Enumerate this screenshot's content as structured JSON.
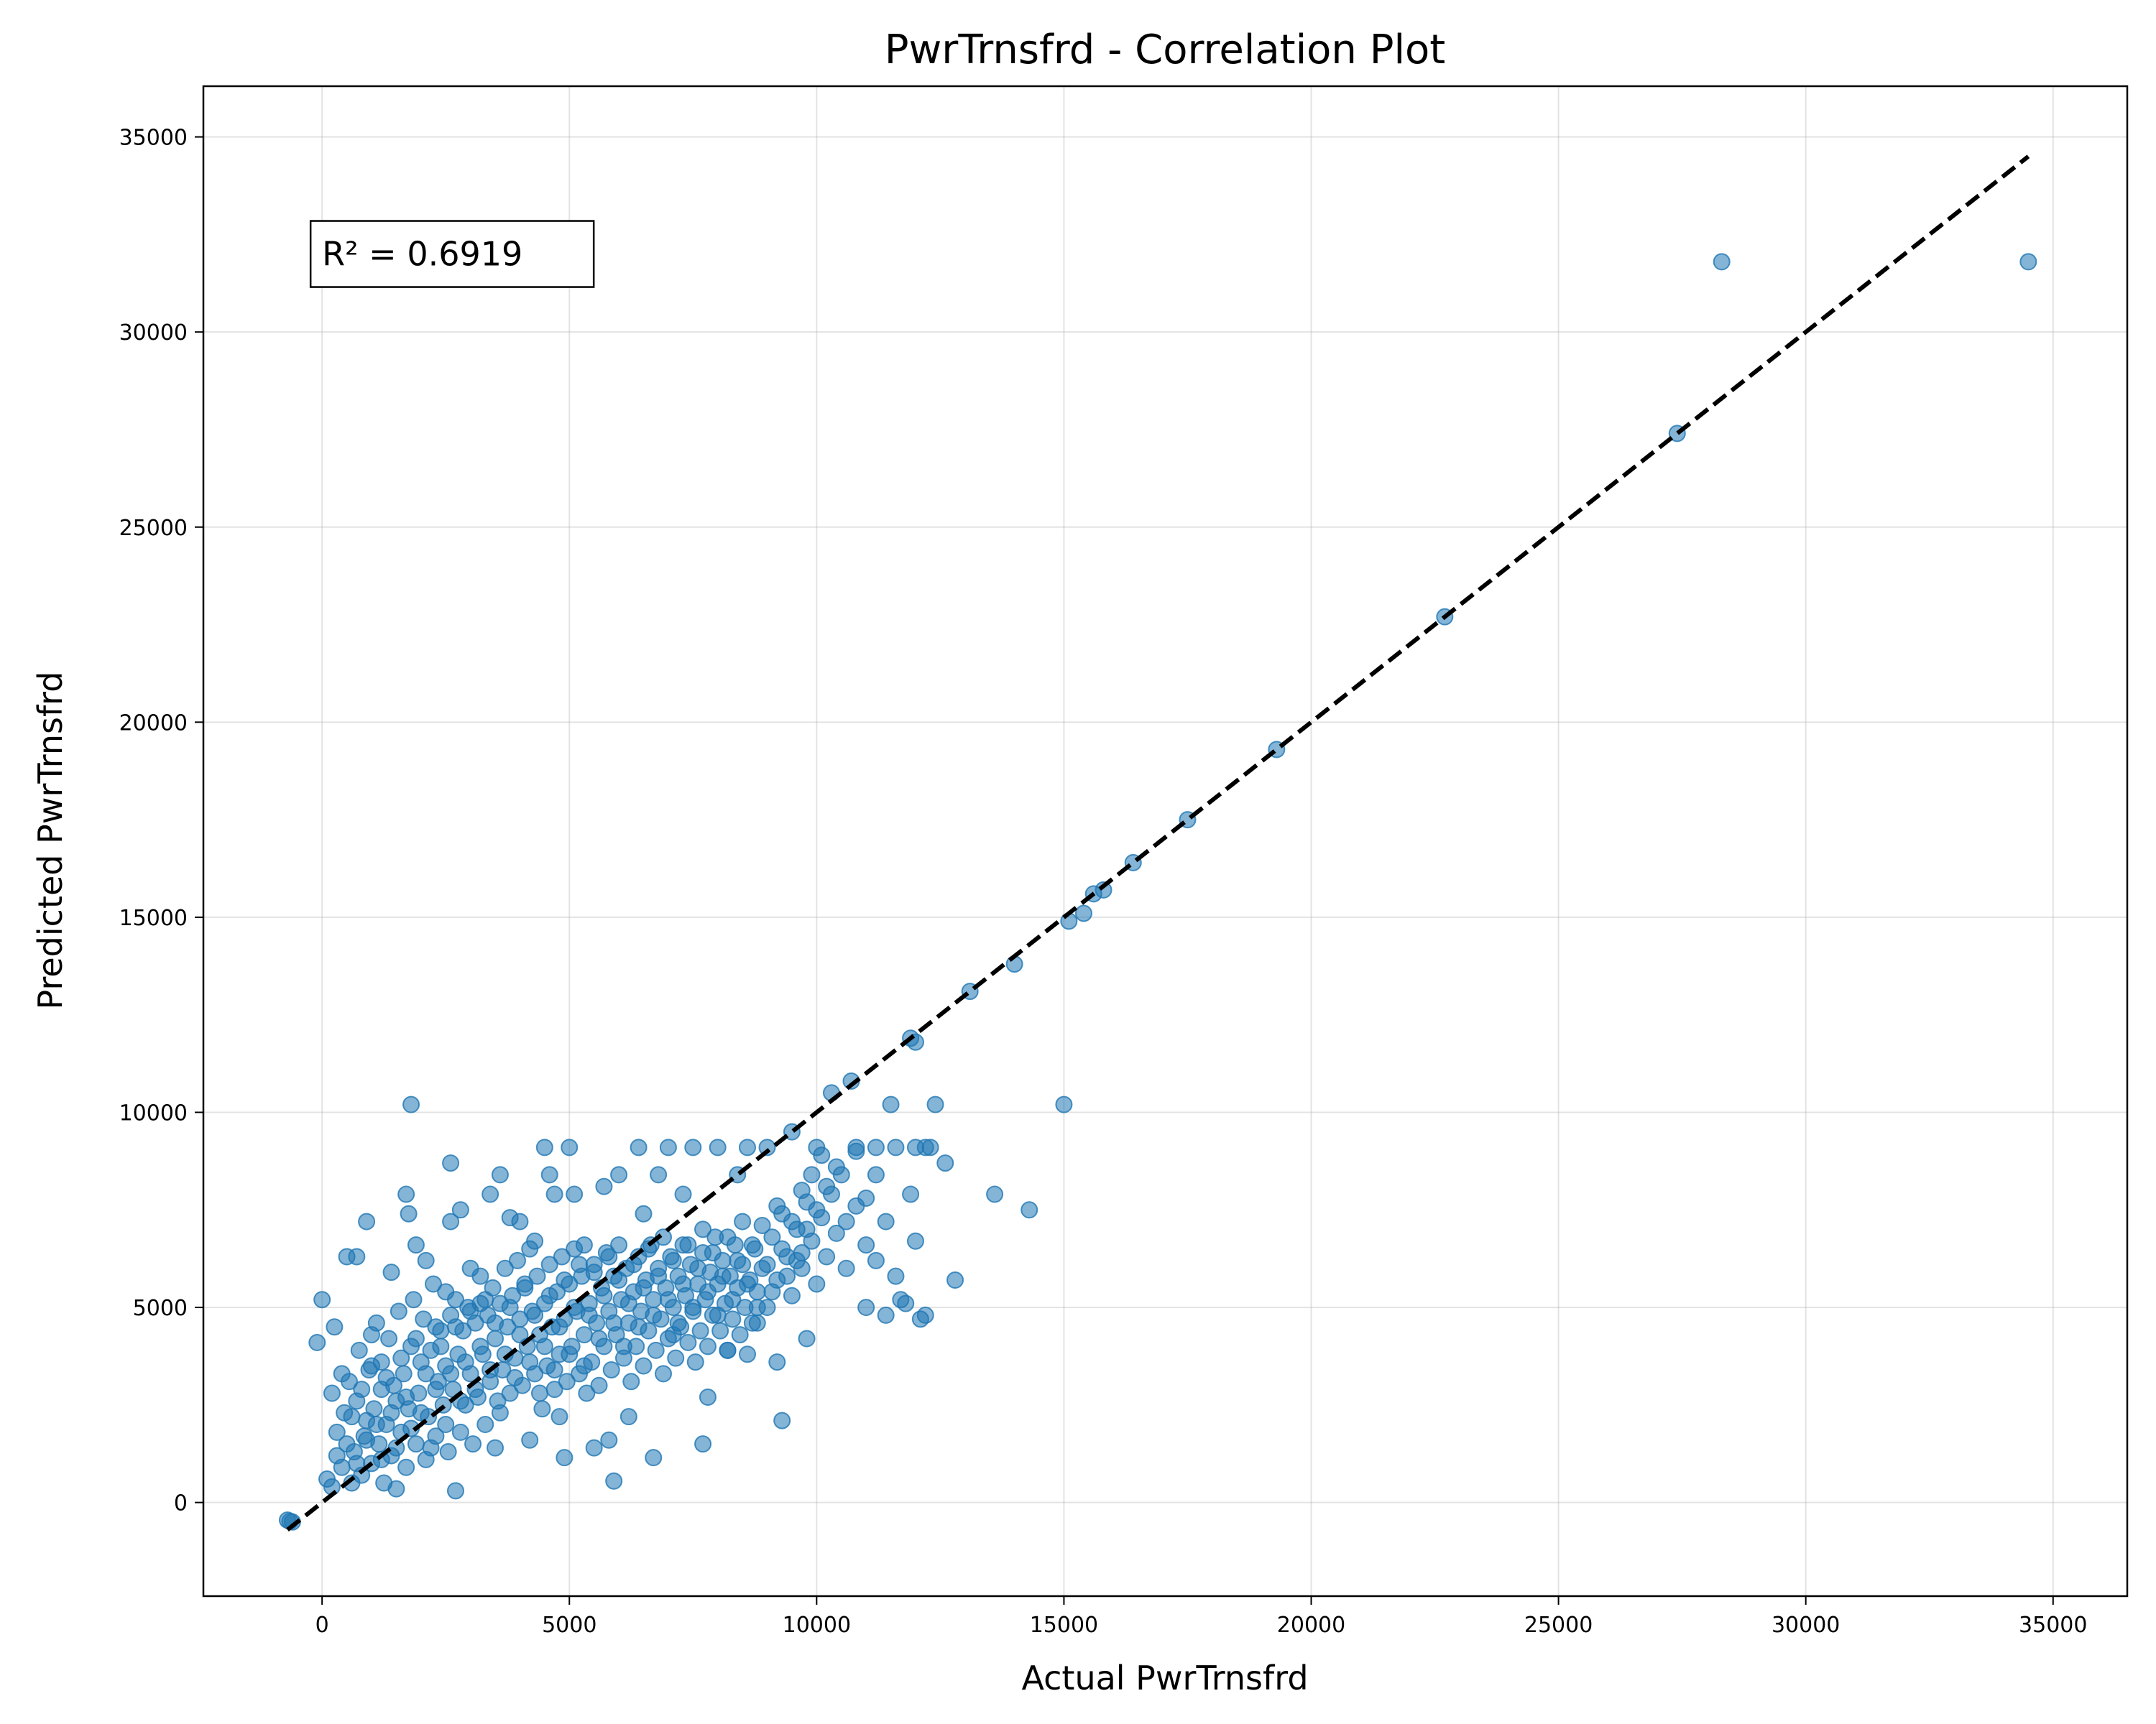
{
  "chart_data": {
    "type": "scatter",
    "title": "PwrTrnsfrd - Correlation Plot",
    "xlabel": "Actual PwrTrnsfrd",
    "ylabel": "Predicted PwrTrnsfrd",
    "xlim": [
      -2400,
      36500
    ],
    "ylim": [
      -2400,
      36300
    ],
    "xticks": [
      0,
      5000,
      10000,
      15000,
      20000,
      25000,
      30000,
      35000
    ],
    "yticks": [
      0,
      5000,
      10000,
      15000,
      20000,
      25000,
      30000,
      35000
    ],
    "xtick_labels": [
      "0",
      "5000",
      "10000",
      "15000",
      "20000",
      "25000",
      "30000",
      "35000"
    ],
    "ytick_labels": [
      "0",
      "5000",
      "10000",
      "15000",
      "20000",
      "25000",
      "30000",
      "35000"
    ],
    "grid": true,
    "point_color": "#1f77b4",
    "point_alpha": 0.55,
    "reference_line": {
      "style": "dashed",
      "color": "#000000",
      "from": [
        -700,
        -700
      ],
      "to": [
        34500,
        34500
      ]
    },
    "annotation": {
      "text": "R² = 0.6919",
      "x": 0,
      "y": 32000
    },
    "points": [
      [
        -700,
        -450
      ],
      [
        -650,
        -480
      ],
      [
        -600,
        -500
      ],
      [
        -100,
        4100
      ],
      [
        0,
        5200
      ],
      [
        100,
        600
      ],
      [
        200,
        400
      ],
      [
        250,
        4500
      ],
      [
        300,
        1200
      ],
      [
        400,
        3300
      ],
      [
        500,
        6300
      ],
      [
        700,
        6300
      ],
      [
        900,
        7200
      ],
      [
        1000,
        4300
      ],
      [
        1200,
        3600
      ],
      [
        1400,
        5900
      ],
      [
        1500,
        350
      ],
      [
        1700,
        7900
      ],
      [
        1750,
        7400
      ],
      [
        1800,
        10200
      ],
      [
        1900,
        6600
      ],
      [
        2100,
        6200
      ],
      [
        2300,
        4500
      ],
      [
        2500,
        5400
      ],
      [
        2600,
        8700
      ],
      [
        2600,
        7200
      ],
      [
        2700,
        300
      ],
      [
        2800,
        7500
      ],
      [
        3000,
        6000
      ],
      [
        3200,
        5100
      ],
      [
        3400,
        7900
      ],
      [
        3500,
        1400
      ],
      [
        3600,
        8400
      ],
      [
        3800,
        7300
      ],
      [
        4000,
        7200
      ],
      [
        4200,
        1600
      ],
      [
        4300,
        6700
      ],
      [
        4500,
        9100
      ],
      [
        4600,
        8400
      ],
      [
        4700,
        7900
      ],
      [
        4800,
        2200
      ],
      [
        4900,
        1150
      ],
      [
        5000,
        9100
      ],
      [
        5100,
        7900
      ],
      [
        5300,
        6600
      ],
      [
        5500,
        1400
      ],
      [
        5700,
        8100
      ],
      [
        5800,
        1600
      ],
      [
        5900,
        550
      ],
      [
        6000,
        8400
      ],
      [
        6200,
        2200
      ],
      [
        6400,
        9100
      ],
      [
        6500,
        7400
      ],
      [
        6700,
        1150
      ],
      [
        6800,
        8400
      ],
      [
        7000,
        9100
      ],
      [
        7100,
        4300
      ],
      [
        7300,
        7900
      ],
      [
        7500,
        9100
      ],
      [
        7700,
        1500
      ],
      [
        7800,
        2700
      ],
      [
        8000,
        9100
      ],
      [
        8200,
        3900
      ],
      [
        8400,
        8400
      ],
      [
        8600,
        9100
      ],
      [
        8800,
        4600
      ],
      [
        9000,
        9100
      ],
      [
        9200,
        3600
      ],
      [
        9300,
        2100
      ],
      [
        9500,
        9500
      ],
      [
        9700,
        6400
      ],
      [
        9800,
        4200
      ],
      [
        10000,
        9100
      ],
      [
        10300,
        10500
      ],
      [
        10500,
        8400
      ],
      [
        10700,
        10800
      ],
      [
        10800,
        9100
      ],
      [
        11000,
        6600
      ],
      [
        11200,
        8400
      ],
      [
        11400,
        7200
      ],
      [
        11500,
        10200
      ],
      [
        11700,
        5200
      ],
      [
        11900,
        7900
      ],
      [
        11900,
        11900
      ],
      [
        12000,
        11800
      ],
      [
        12100,
        4700
      ],
      [
        12300,
        9100
      ],
      [
        12400,
        10200
      ],
      [
        12600,
        8700
      ],
      [
        12800,
        5700
      ],
      [
        13100,
        13100
      ],
      [
        13600,
        7900
      ],
      [
        14000,
        13800
      ],
      [
        14300,
        7500
      ],
      [
        15000,
        10200
      ],
      [
        15100,
        14900
      ],
      [
        15400,
        15100
      ],
      [
        15600,
        15600
      ],
      [
        15800,
        15700
      ],
      [
        16400,
        16400
      ],
      [
        17500,
        17500
      ],
      [
        19300,
        19300
      ],
      [
        22700,
        22700
      ],
      [
        27400,
        27400
      ],
      [
        28300,
        31800
      ],
      [
        34500,
        31800
      ],
      [
        200,
        2800
      ],
      [
        300,
        1800
      ],
      [
        400,
        900
      ],
      [
        450,
        2300
      ],
      [
        550,
        3100
      ],
      [
        600,
        500
      ],
      [
        650,
        1300
      ],
      [
        700,
        2600
      ],
      [
        750,
        3900
      ],
      [
        800,
        700
      ],
      [
        850,
        1700
      ],
      [
        900,
        2100
      ],
      [
        950,
        3400
      ],
      [
        1000,
        1000
      ],
      [
        1050,
        2400
      ],
      [
        1100,
        4600
      ],
      [
        1150,
        1500
      ],
      [
        1200,
        2900
      ],
      [
        1250,
        500
      ],
      [
        1300,
        2000
      ],
      [
        1350,
        4200
      ],
      [
        1400,
        1200
      ],
      [
        1450,
        3000
      ],
      [
        1500,
        2600
      ],
      [
        1550,
        4900
      ],
      [
        1600,
        1800
      ],
      [
        1650,
        3300
      ],
      [
        1700,
        900
      ],
      [
        1750,
        2400
      ],
      [
        1800,
        4000
      ],
      [
        1850,
        5200
      ],
      [
        1900,
        1500
      ],
      [
        1950,
        2800
      ],
      [
        2000,
        3600
      ],
      [
        2050,
        4700
      ],
      [
        2100,
        1100
      ],
      [
        2150,
        2200
      ],
      [
        2200,
        3900
      ],
      [
        2250,
        5600
      ],
      [
        2300,
        1700
      ],
      [
        2350,
        3100
      ],
      [
        2400,
        4400
      ],
      [
        2450,
        2500
      ],
      [
        2500,
        3500
      ],
      [
        2550,
        1300
      ],
      [
        2600,
        4800
      ],
      [
        2650,
        2900
      ],
      [
        2700,
        5200
      ],
      [
        2750,
        3800
      ],
      [
        2800,
        1800
      ],
      [
        2850,
        4400
      ],
      [
        2900,
        2500
      ],
      [
        2950,
        5000
      ],
      [
        3000,
        3300
      ],
      [
        3050,
        1500
      ],
      [
        3100,
        4600
      ],
      [
        3150,
        2700
      ],
      [
        3200,
        5800
      ],
      [
        3250,
        3800
      ],
      [
        3300,
        2000
      ],
      [
        3350,
        4800
      ],
      [
        3400,
        3100
      ],
      [
        3450,
        5500
      ],
      [
        3500,
        4200
      ],
      [
        3550,
        2600
      ],
      [
        3600,
        5100
      ],
      [
        3650,
        3400
      ],
      [
        3700,
        6000
      ],
      [
        3750,
        4500
      ],
      [
        3800,
        2800
      ],
      [
        3850,
        5300
      ],
      [
        3900,
        3700
      ],
      [
        3950,
        6200
      ],
      [
        4000,
        4700
      ],
      [
        4050,
        3000
      ],
      [
        4100,
        5600
      ],
      [
        4150,
        4000
      ],
      [
        4200,
        6500
      ],
      [
        4250,
        4900
      ],
      [
        4300,
        3300
      ],
      [
        4350,
        5800
      ],
      [
        4400,
        4300
      ],
      [
        4450,
        2400
      ],
      [
        4500,
        5100
      ],
      [
        4550,
        3500
      ],
      [
        4600,
        6100
      ],
      [
        4650,
        4500
      ],
      [
        4700,
        2900
      ],
      [
        4750,
        5400
      ],
      [
        4800,
        3800
      ],
      [
        4850,
        6300
      ],
      [
        4900,
        4700
      ],
      [
        4950,
        3100
      ],
      [
        5000,
        5600
      ],
      [
        5050,
        4000
      ],
      [
        5100,
        6500
      ],
      [
        5150,
        4900
      ],
      [
        5200,
        3300
      ],
      [
        5250,
        5800
      ],
      [
        5300,
        4300
      ],
      [
        5350,
        2800
      ],
      [
        5400,
        5100
      ],
      [
        5450,
        3600
      ],
      [
        5500,
        6100
      ],
      [
        5550,
        4600
      ],
      [
        5600,
        3000
      ],
      [
        5650,
        5500
      ],
      [
        5700,
        4000
      ],
      [
        5750,
        6400
      ],
      [
        5800,
        4900
      ],
      [
        5850,
        3400
      ],
      [
        5900,
        5800
      ],
      [
        5950,
        4300
      ],
      [
        6000,
        6600
      ],
      [
        6050,
        5200
      ],
      [
        6100,
        3700
      ],
      [
        6150,
        6000
      ],
      [
        6200,
        4600
      ],
      [
        6250,
        3100
      ],
      [
        6300,
        5400
      ],
      [
        6350,
        4000
      ],
      [
        6400,
        6300
      ],
      [
        6450,
        4900
      ],
      [
        6500,
        3500
      ],
      [
        6550,
        5700
      ],
      [
        6600,
        4400
      ],
      [
        6650,
        6600
      ],
      [
        6700,
        5200
      ],
      [
        6750,
        3900
      ],
      [
        6800,
        6000
      ],
      [
        6850,
        4700
      ],
      [
        6900,
        3300
      ],
      [
        6950,
        5500
      ],
      [
        7000,
        4200
      ],
      [
        7050,
        6300
      ],
      [
        7100,
        5000
      ],
      [
        7150,
        3700
      ],
      [
        7200,
        5800
      ],
      [
        7250,
        4500
      ],
      [
        7300,
        6600
      ],
      [
        7350,
        5300
      ],
      [
        7400,
        4100
      ],
      [
        7450,
        6100
      ],
      [
        7500,
        4900
      ],
      [
        7550,
        3600
      ],
      [
        7600,
        5600
      ],
      [
        7650,
        4400
      ],
      [
        7700,
        6400
      ],
      [
        7750,
        5200
      ],
      [
        7800,
        4000
      ],
      [
        7850,
        5900
      ],
      [
        7900,
        4800
      ],
      [
        7950,
        6800
      ],
      [
        8000,
        5600
      ],
      [
        8050,
        4400
      ],
      [
        8100,
        6200
      ],
      [
        8150,
        5100
      ],
      [
        8200,
        3900
      ],
      [
        8250,
        5800
      ],
      [
        8300,
        4700
      ],
      [
        8350,
        6600
      ],
      [
        8400,
        5500
      ],
      [
        8450,
        4300
      ],
      [
        8500,
        6100
      ],
      [
        8550,
        5000
      ],
      [
        8600,
        3800
      ],
      [
        8650,
        5700
      ],
      [
        8700,
        4600
      ],
      [
        8750,
        6500
      ],
      [
        8800,
        5400
      ],
      [
        8900,
        6000
      ],
      [
        9000,
        5000
      ],
      [
        9100,
        6800
      ],
      [
        9200,
        5700
      ],
      [
        9300,
        7400
      ],
      [
        9400,
        6300
      ],
      [
        9500,
        5300
      ],
      [
        9600,
        7000
      ],
      [
        9700,
        6000
      ],
      [
        9800,
        7700
      ],
      [
        9900,
        6700
      ],
      [
        10000,
        5600
      ],
      [
        10100,
        7300
      ],
      [
        10200,
        6300
      ],
      [
        10300,
        7900
      ],
      [
        10400,
        6900
      ],
      [
        10600,
        6000
      ],
      [
        10800,
        7600
      ],
      [
        11000,
        5000
      ],
      [
        11200,
        6200
      ],
      [
        11400,
        4800
      ],
      [
        11600,
        5800
      ],
      [
        11800,
        5100
      ],
      [
        12000,
        6700
      ],
      [
        12200,
        4800
      ],
      [
        500,
        1500
      ],
      [
        600,
        2200
      ],
      [
        700,
        1000
      ],
      [
        800,
        2900
      ],
      [
        900,
        1600
      ],
      [
        1000,
        3500
      ],
      [
        1100,
        2000
      ],
      [
        1200,
        1100
      ],
      [
        1300,
        3200
      ],
      [
        1400,
        2300
      ],
      [
        1500,
        1400
      ],
      [
        1600,
        3700
      ],
      [
        1700,
        2700
      ],
      [
        1800,
        1900
      ],
      [
        1900,
        4200
      ],
      [
        2000,
        2300
      ],
      [
        2100,
        3300
      ],
      [
        2200,
        1400
      ],
      [
        2300,
        2900
      ],
      [
        2400,
        4000
      ],
      [
        2500,
        2000
      ],
      [
        2600,
        3300
      ],
      [
        2700,
        4500
      ],
      [
        2800,
        2600
      ],
      [
        2900,
        3600
      ],
      [
        3000,
        4900
      ],
      [
        3100,
        2900
      ],
      [
        3200,
        4000
      ],
      [
        3300,
        5200
      ],
      [
        3400,
        3400
      ],
      [
        3500,
        4600
      ],
      [
        3600,
        2300
      ],
      [
        3700,
        3800
      ],
      [
        3800,
        5000
      ],
      [
        3900,
        3200
      ],
      [
        4000,
        4300
      ],
      [
        4100,
        5500
      ],
      [
        4200,
        3600
      ],
      [
        4300,
        4800
      ],
      [
        4400,
        2800
      ],
      [
        4500,
        4000
      ],
      [
        4600,
        5300
      ],
      [
        4700,
        3400
      ],
      [
        4800,
        4500
      ],
      [
        4900,
        5700
      ],
      [
        5000,
        3800
      ],
      [
        5100,
        5000
      ],
      [
        5200,
        6100
      ],
      [
        5300,
        3500
      ],
      [
        5400,
        4800
      ],
      [
        5500,
        5900
      ],
      [
        5600,
        4200
      ],
      [
        5700,
        5300
      ],
      [
        5800,
        6300
      ],
      [
        5900,
        4600
      ],
      [
        6000,
        5700
      ],
      [
        6100,
        4000
      ],
      [
        6200,
        5100
      ],
      [
        6300,
        6100
      ],
      [
        6400,
        4500
      ],
      [
        6500,
        5500
      ],
      [
        6600,
        6500
      ],
      [
        6700,
        4800
      ],
      [
        6800,
        5800
      ],
      [
        6900,
        6800
      ],
      [
        7000,
        5200
      ],
      [
        7100,
        6200
      ],
      [
        7200,
        4600
      ],
      [
        7300,
        5600
      ],
      [
        7400,
        6600
      ],
      [
        7500,
        5000
      ],
      [
        7600,
        6000
      ],
      [
        7700,
        7000
      ],
      [
        7800,
        5400
      ],
      [
        7900,
        6400
      ],
      [
        8000,
        4800
      ],
      [
        8100,
        5800
      ],
      [
        8200,
        6800
      ],
      [
        8300,
        5200
      ],
      [
        8400,
        6200
      ],
      [
        8500,
        7200
      ],
      [
        8600,
        5600
      ],
      [
        8700,
        6600
      ],
      [
        8800,
        5000
      ],
      [
        8900,
        7100
      ],
      [
        9000,
        6100
      ],
      [
        9100,
        5400
      ],
      [
        9200,
        7600
      ],
      [
        9300,
        6500
      ],
      [
        9400,
        5800
      ],
      [
        9500,
        7200
      ],
      [
        9600,
        6200
      ],
      [
        9700,
        8000
      ],
      [
        9800,
        7000
      ],
      [
        9900,
        8400
      ],
      [
        10000,
        7500
      ],
      [
        10100,
        8900
      ],
      [
        10200,
        8100
      ],
      [
        10400,
        8600
      ],
      [
        10600,
        7200
      ],
      [
        10800,
        9000
      ],
      [
        11000,
        7800
      ],
      [
        11200,
        9100
      ],
      [
        11600,
        9100
      ],
      [
        12000,
        9100
      ],
      [
        12200,
        9100
      ]
    ]
  }
}
